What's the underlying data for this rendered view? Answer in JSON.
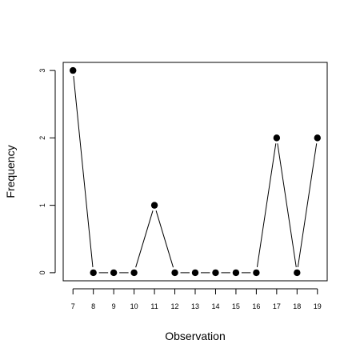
{
  "chart_data": {
    "type": "line",
    "title": "",
    "xlabel": "Observation",
    "ylabel": "Frequency",
    "x": [
      7,
      8,
      9,
      10,
      11,
      12,
      13,
      14,
      15,
      16,
      17,
      18,
      19
    ],
    "series": [
      {
        "values": [
          3,
          0,
          0,
          0,
          1,
          0,
          0,
          0,
          0,
          0,
          2,
          0,
          2
        ]
      }
    ],
    "xticks": [
      7,
      8,
      9,
      10,
      11,
      12,
      13,
      14,
      15,
      16,
      17,
      18,
      19
    ],
    "yticks": [
      0,
      1,
      2,
      3
    ],
    "xlim": [
      6.52,
      19.48
    ],
    "ylim": [
      -0.12,
      3.12
    ],
    "grid": false,
    "marker": "filled-circle",
    "colors": {
      "line": "#000000",
      "marker": "#000000",
      "frame": "#000000"
    }
  }
}
